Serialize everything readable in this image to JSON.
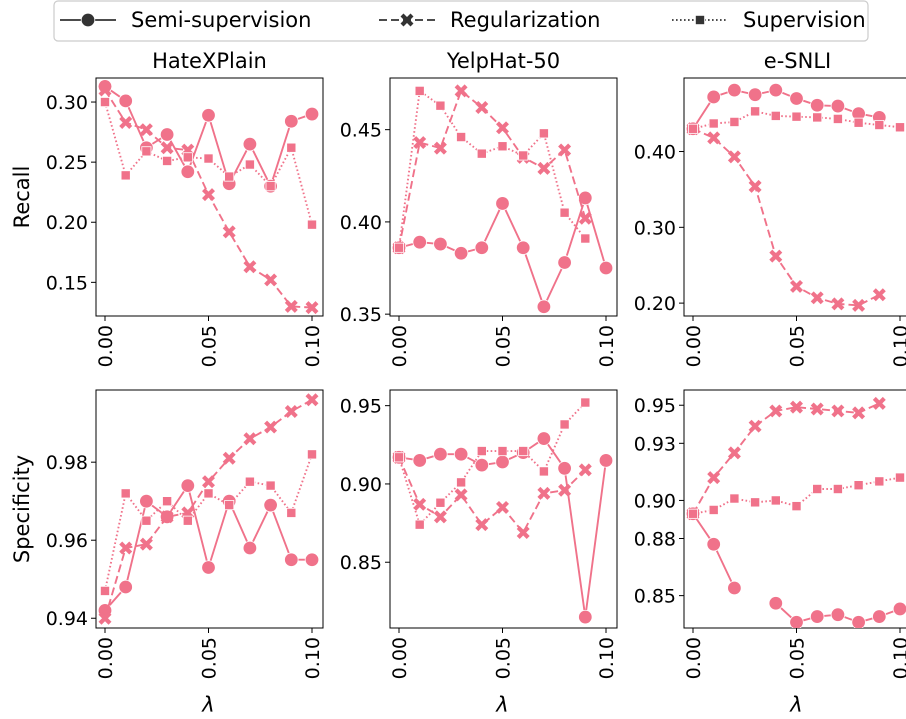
{
  "legend": {
    "items": [
      {
        "label": "Semi-supervision",
        "style": "solid",
        "marker": "circle"
      },
      {
        "label": "Regularization",
        "style": "dashed",
        "marker": "x"
      },
      {
        "label": "Supervision",
        "style": "dotted",
        "marker": "square"
      }
    ]
  },
  "colors": {
    "series": "#f0728a",
    "frame": "#000000",
    "legend_border": "#cccccc"
  },
  "chart_data": [
    {
      "type": "line",
      "dataset": "HateXPlain",
      "title": "HateXPlain",
      "row": "Recall",
      "ylabel": "Recall",
      "xlabel": "",
      "x": [
        0,
        0.01,
        0.02,
        0.03,
        0.04,
        0.05,
        0.06,
        0.07,
        0.08,
        0.09,
        0.1
      ],
      "xticks": [
        "0.00",
        "0.05",
        "0.10"
      ],
      "yticks": [
        "0.15",
        "0.20",
        "0.25",
        "0.30"
      ],
      "ylim": [
        0.122,
        0.32
      ],
      "series": [
        {
          "name": "Semi-supervision",
          "values": [
            0.313,
            0.301,
            0.262,
            0.273,
            0.242,
            0.289,
            0.232,
            0.265,
            0.23,
            0.284,
            0.29
          ]
        },
        {
          "name": "Regularization",
          "values": [
            0.31,
            0.283,
            0.277,
            0.262,
            0.26,
            0.223,
            0.192,
            0.163,
            0.152,
            0.13,
            0.129
          ]
        },
        {
          "name": "Supervision",
          "values": [
            0.3,
            0.239,
            0.259,
            0.251,
            0.254,
            0.253,
            0.238,
            0.248,
            0.23,
            0.262,
            0.198
          ]
        }
      ]
    },
    {
      "type": "line",
      "dataset": "YelpHat-50",
      "title": "YelpHat-50",
      "row": "Recall",
      "ylabel": "",
      "xlabel": "",
      "x": [
        0,
        0.01,
        0.02,
        0.03,
        0.04,
        0.05,
        0.06,
        0.07,
        0.08,
        0.09,
        0.1
      ],
      "xticks": [
        "0.00",
        "0.05",
        "0.10"
      ],
      "yticks": [
        "0.35",
        "0.40",
        "0.45"
      ],
      "ylim": [
        0.349,
        0.478
      ],
      "series": [
        {
          "name": "Semi-supervision",
          "values": [
            0.386,
            0.389,
            0.388,
            0.383,
            0.386,
            0.41,
            0.386,
            0.354,
            0.378,
            0.413,
            0.375
          ]
        },
        {
          "name": "Regularization",
          "values": [
            0.386,
            0.443,
            0.44,
            0.471,
            0.462,
            0.451,
            0.435,
            0.429,
            0.439,
            0.402,
            null
          ]
        },
        {
          "name": "Supervision",
          "values": [
            0.386,
            0.471,
            0.463,
            0.446,
            0.437,
            0.441,
            0.436,
            0.448,
            0.405,
            0.391,
            null
          ]
        }
      ]
    },
    {
      "type": "line",
      "dataset": "e-SNLI",
      "title": "e-SNLI",
      "row": "Recall",
      "ylabel": "",
      "xlabel": "",
      "x": [
        0,
        0.01,
        0.02,
        0.03,
        0.04,
        0.05,
        0.06,
        0.07,
        0.08,
        0.09,
        0.1
      ],
      "xticks": [
        "0.00",
        "0.05",
        "0.10"
      ],
      "yticks": [
        "0.20",
        "0.30",
        "0.40"
      ],
      "ylim": [
        0.183,
        0.497
      ],
      "series": [
        {
          "name": "Semi-supervision",
          "values": [
            0.43,
            0.472,
            0.481,
            0.475,
            0.481,
            0.47,
            0.461,
            0.46,
            0.45,
            0.445,
            null
          ]
        },
        {
          "name": "Regularization",
          "values": [
            0.43,
            0.418,
            0.393,
            0.354,
            0.262,
            0.222,
            0.207,
            0.199,
            0.197,
            0.211,
            null
          ]
        },
        {
          "name": "Supervision",
          "values": [
            0.43,
            0.437,
            0.439,
            0.453,
            0.447,
            0.446,
            0.445,
            0.443,
            0.438,
            0.435,
            0.432
          ]
        }
      ]
    },
    {
      "type": "line",
      "dataset": "HateXPlain",
      "title": "",
      "row": "Specificity",
      "ylabel": "Specificity",
      "xlabel": "λ",
      "x": [
        0,
        0.01,
        0.02,
        0.03,
        0.04,
        0.05,
        0.06,
        0.07,
        0.08,
        0.09,
        0.1
      ],
      "xticks": [
        "0.00",
        "0.05",
        "0.10"
      ],
      "yticks": [
        "0.94",
        "0.96",
        "0.98"
      ],
      "ylim": [
        0.9375,
        0.9985
      ],
      "series": [
        {
          "name": "Semi-supervision",
          "values": [
            0.942,
            0.948,
            0.97,
            0.966,
            0.974,
            0.953,
            0.97,
            0.958,
            0.969,
            0.955,
            0.955
          ]
        },
        {
          "name": "Regularization",
          "values": [
            0.94,
            0.958,
            0.959,
            0.966,
            0.967,
            0.975,
            0.981,
            0.986,
            0.989,
            0.993,
            0.996
          ]
        },
        {
          "name": "Supervision",
          "values": [
            0.947,
            0.972,
            0.965,
            0.97,
            0.965,
            0.972,
            0.969,
            0.975,
            0.974,
            0.967,
            0.982
          ]
        }
      ]
    },
    {
      "type": "line",
      "dataset": "YelpHat-50",
      "title": "",
      "row": "Specificity",
      "ylabel": "",
      "xlabel": "λ",
      "x": [
        0,
        0.01,
        0.02,
        0.03,
        0.04,
        0.05,
        0.06,
        0.07,
        0.08,
        0.09,
        0.1
      ],
      "xticks": [
        "0.00",
        "0.05",
        "0.10"
      ],
      "yticks": [
        "0.85",
        "0.90",
        "0.95"
      ],
      "ylim": [
        0.808,
        0.96
      ],
      "series": [
        {
          "name": "Semi-supervision",
          "values": [
            0.917,
            0.915,
            0.919,
            0.919,
            0.912,
            0.914,
            0.92,
            0.929,
            0.91,
            0.815,
            0.915
          ]
        },
        {
          "name": "Regularization",
          "values": [
            0.917,
            0.887,
            0.879,
            0.893,
            0.874,
            0.885,
            0.869,
            0.894,
            0.896,
            0.909,
            null
          ]
        },
        {
          "name": "Supervision",
          "values": [
            0.917,
            0.874,
            0.888,
            0.901,
            0.921,
            0.921,
            0.921,
            0.908,
            0.938,
            0.952,
            null
          ]
        }
      ]
    },
    {
      "type": "line",
      "dataset": "e-SNLI",
      "title": "",
      "row": "Specificity",
      "ylabel": "",
      "xlabel": "λ",
      "x": [
        0,
        0.01,
        0.02,
        0.03,
        0.04,
        0.05,
        0.06,
        0.07,
        0.08,
        0.09,
        0.1
      ],
      "xticks": [
        "0.00",
        "0.05",
        "0.10"
      ],
      "yticks": [
        "0.85",
        "0.88",
        "0.90",
        "0.93",
        "0.95"
      ],
      "ylim": [
        0.833,
        0.958
      ],
      "series": [
        {
          "name": "Semi-supervision",
          "values": [
            0.893,
            0.877,
            0.854,
            null,
            0.846,
            0.836,
            0.839,
            0.84,
            0.836,
            0.839,
            0.843
          ]
        },
        {
          "name": "Regularization",
          "values": [
            0.893,
            0.912,
            0.925,
            0.939,
            0.947,
            0.949,
            0.948,
            0.947,
            0.946,
            0.951,
            null
          ]
        },
        {
          "name": "Supervision",
          "values": [
            0.893,
            0.895,
            0.901,
            0.899,
            0.9,
            0.897,
            0.906,
            0.906,
            0.908,
            0.91,
            0.912
          ]
        }
      ]
    }
  ]
}
